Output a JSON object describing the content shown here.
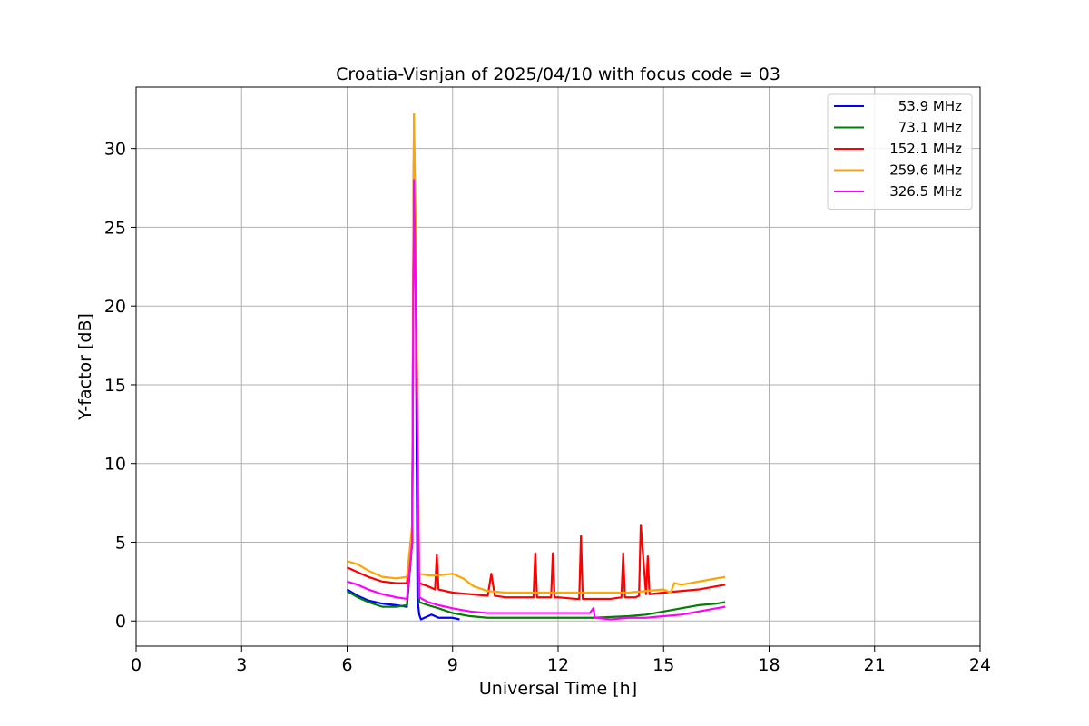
{
  "chart_data": {
    "type": "line",
    "title": "Croatia-Visnjan of 2025/04/10 with focus code = 03",
    "xlabel": "Universal Time [h]",
    "ylabel": "Y-factor [dB]",
    "xlim": [
      0,
      24
    ],
    "ylim": [
      -1.6,
      33.9
    ],
    "xticks": [
      0,
      3,
      6,
      9,
      12,
      15,
      18,
      21,
      24
    ],
    "yticks": [
      0,
      5,
      10,
      15,
      20,
      25,
      30
    ],
    "grid": true,
    "legend_position": "top-right",
    "series": [
      {
        "name": "53.9 MHz",
        "color": "#0000ff",
        "x": [
          6.0,
          6.3,
          6.6,
          7.0,
          7.4,
          7.7,
          7.85,
          7.9,
          7.95,
          8.0,
          8.05,
          8.1,
          8.2,
          8.4,
          8.6,
          9.0,
          9.2
        ],
        "y": [
          2.0,
          1.6,
          1.3,
          1.1,
          1.0,
          0.9,
          5.0,
          29.8,
          22.0,
          1.5,
          0.4,
          0.1,
          0.2,
          0.4,
          0.2,
          0.2,
          0.1
        ]
      },
      {
        "name": "73.1 MHz",
        "color": "#008000",
        "x": [
          6.0,
          6.3,
          6.6,
          7.0,
          7.4,
          7.7,
          7.85,
          7.9,
          7.95,
          8.05,
          8.3,
          8.6,
          9.0,
          9.5,
          10.0,
          10.5,
          11.0,
          11.5,
          12.0,
          12.5,
          13.0,
          13.5,
          14.0,
          14.5,
          15.0,
          15.5,
          16.0,
          16.5,
          16.75
        ],
        "y": [
          1.9,
          1.5,
          1.2,
          0.9,
          0.9,
          1.0,
          5.0,
          29.8,
          22.0,
          1.2,
          1.0,
          0.8,
          0.5,
          0.3,
          0.2,
          0.2,
          0.2,
          0.2,
          0.2,
          0.2,
          0.2,
          0.25,
          0.3,
          0.4,
          0.6,
          0.8,
          1.0,
          1.1,
          1.2
        ]
      },
      {
        "name": "152.1 MHz",
        "color": "#ff0000",
        "x": [
          6.0,
          6.3,
          6.6,
          7.0,
          7.4,
          7.7,
          7.85,
          7.9,
          7.95,
          8.05,
          8.3,
          8.5,
          8.55,
          8.6,
          9.0,
          9.5,
          10.0,
          10.1,
          10.2,
          10.5,
          11.0,
          11.3,
          11.35,
          11.4,
          11.8,
          11.85,
          11.9,
          12.0,
          12.5,
          12.6,
          12.65,
          12.7,
          13.0,
          13.5,
          13.8,
          13.85,
          13.9,
          14.0,
          14.2,
          14.3,
          14.35,
          14.5,
          14.55,
          14.6,
          15.0,
          15.5,
          16.0,
          16.5,
          16.75
        ],
        "y": [
          3.4,
          3.1,
          2.8,
          2.5,
          2.4,
          2.4,
          6.0,
          31.0,
          24.0,
          2.4,
          2.2,
          2.0,
          4.2,
          2.0,
          1.8,
          1.7,
          1.6,
          3.0,
          1.6,
          1.5,
          1.5,
          1.5,
          4.3,
          1.5,
          1.5,
          4.3,
          1.5,
          1.5,
          1.4,
          1.4,
          5.4,
          1.4,
          1.4,
          1.4,
          1.5,
          4.3,
          1.5,
          1.5,
          1.5,
          1.6,
          6.1,
          1.7,
          4.1,
          1.7,
          1.8,
          1.9,
          2.0,
          2.2,
          2.3
        ]
      },
      {
        "name": "259.6 MHz",
        "color": "#ffa500",
        "x": [
          6.0,
          6.3,
          6.6,
          7.0,
          7.4,
          7.7,
          7.85,
          7.9,
          7.95,
          8.05,
          8.3,
          8.6,
          9.0,
          9.3,
          9.6,
          10.0,
          10.5,
          11.0,
          11.5,
          12.0,
          12.5,
          13.0,
          13.5,
          14.0,
          14.5,
          15.0,
          15.2,
          15.3,
          15.5,
          16.0,
          16.5,
          16.75
        ],
        "y": [
          3.8,
          3.6,
          3.2,
          2.8,
          2.7,
          2.8,
          6.0,
          32.2,
          25.0,
          3.0,
          2.9,
          2.9,
          3.0,
          2.7,
          2.2,
          1.9,
          1.8,
          1.8,
          1.8,
          1.8,
          1.8,
          1.8,
          1.8,
          1.8,
          1.9,
          2.0,
          1.8,
          2.4,
          2.3,
          2.5,
          2.7,
          2.8
        ]
      },
      {
        "name": "326.5 MHz",
        "color": "#ff00ff",
        "x": [
          6.0,
          6.3,
          6.6,
          7.0,
          7.4,
          7.7,
          7.85,
          7.9,
          7.95,
          8.05,
          8.3,
          8.6,
          9.0,
          9.5,
          10.0,
          10.5,
          11.0,
          11.5,
          12.0,
          12.5,
          12.9,
          13.0,
          13.05,
          13.5,
          14.0,
          14.5,
          15.0,
          15.5,
          16.0,
          16.5,
          16.75
        ],
        "y": [
          2.5,
          2.3,
          2.0,
          1.7,
          1.5,
          1.4,
          5.0,
          28.0,
          21.0,
          1.5,
          1.2,
          1.0,
          0.8,
          0.6,
          0.5,
          0.5,
          0.5,
          0.5,
          0.5,
          0.5,
          0.5,
          0.8,
          0.2,
          0.1,
          0.2,
          0.2,
          0.3,
          0.4,
          0.6,
          0.8,
          0.9
        ]
      }
    ]
  }
}
